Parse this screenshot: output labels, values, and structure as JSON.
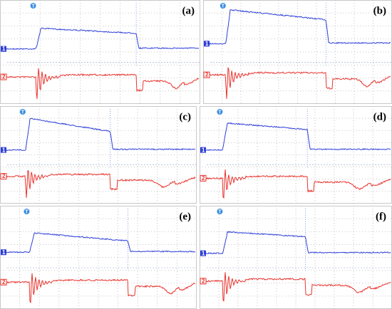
{
  "panels": [
    {
      "label": "(a)"
    },
    {
      "label": "(b)"
    },
    {
      "label": "(c)"
    },
    {
      "label": "(d)"
    },
    {
      "label": "(e)"
    },
    {
      "label": "(f)"
    }
  ],
  "channel_labels": [
    "1",
    "2"
  ],
  "trigger_label": "T"
}
